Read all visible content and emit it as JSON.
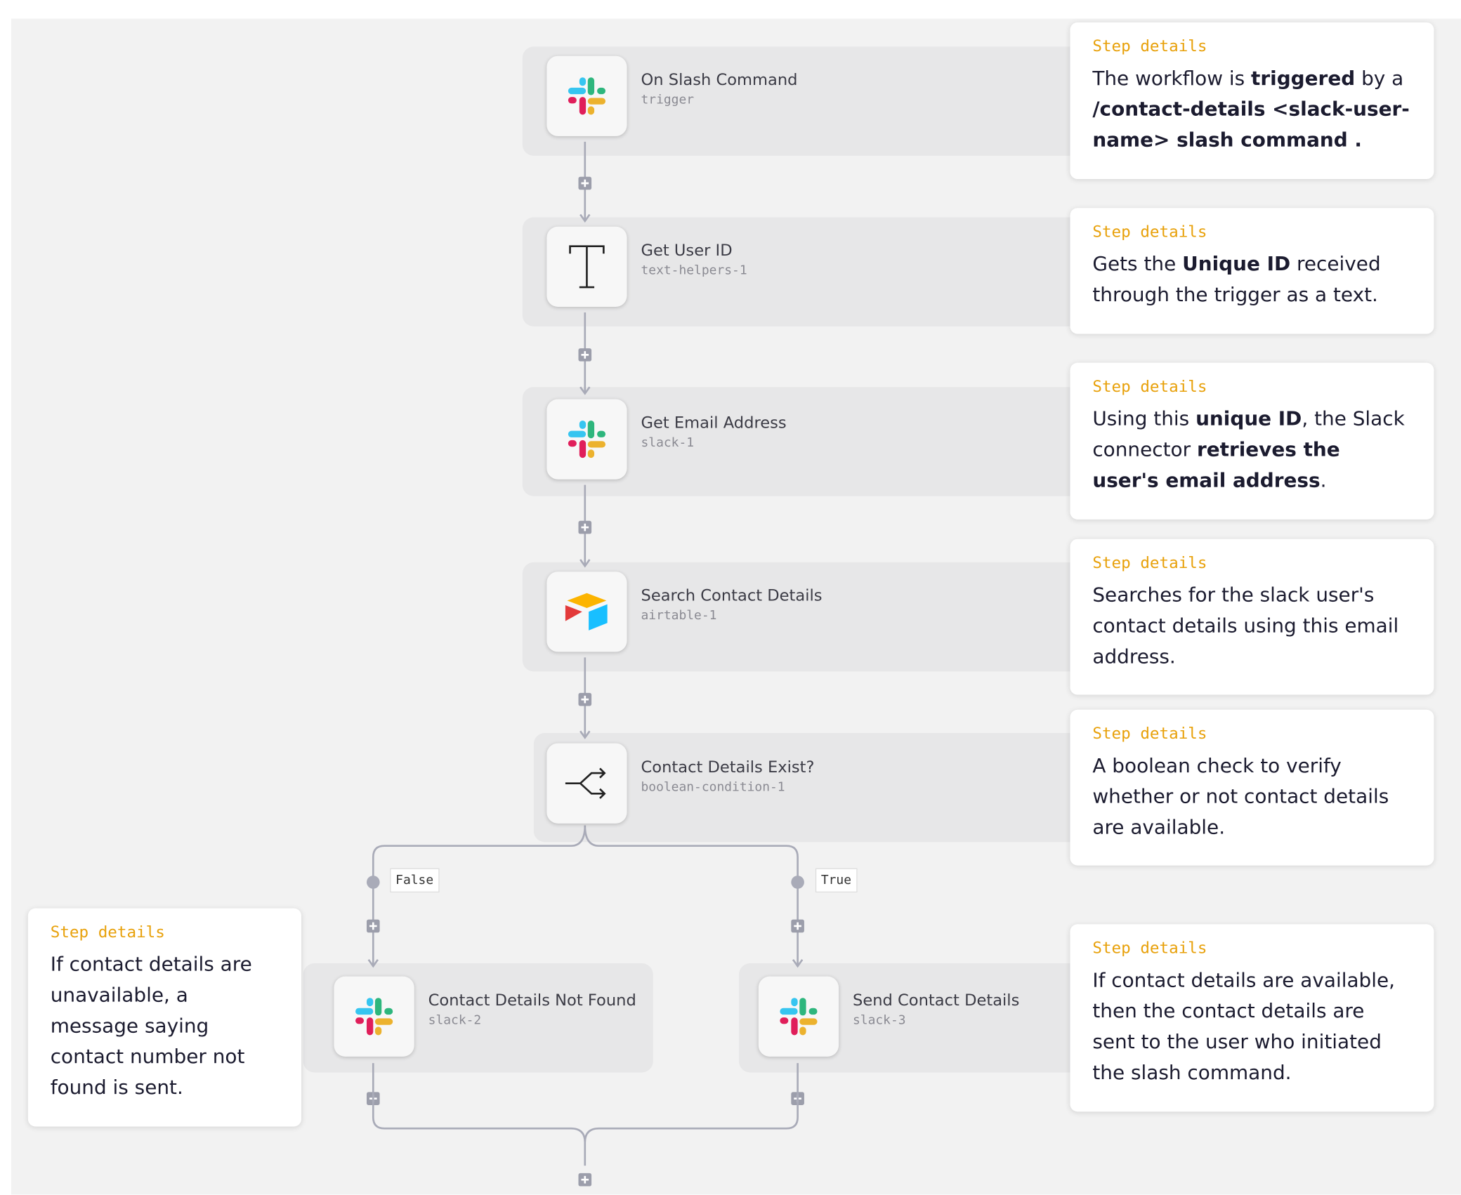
{
  "nodes": [
    {
      "title": "On Slash Command",
      "id": "trigger",
      "icon": "slack"
    },
    {
      "title": "Get User ID",
      "id": "text-helpers-1",
      "icon": "text"
    },
    {
      "title": "Get Email Address",
      "id": "slack-1",
      "icon": "slack"
    },
    {
      "title": "Search Contact Details",
      "id": "airtable-1",
      "icon": "airtable"
    },
    {
      "title": "Contact Details Exist?",
      "id": "boolean-condition-1",
      "icon": "boolean"
    },
    {
      "title": "Contact Details Not Found",
      "id": "slack-2",
      "icon": "slack"
    },
    {
      "title": "Send Contact Details",
      "id": "slack-3",
      "icon": "slack"
    }
  ],
  "branches": [
    "False",
    "True"
  ],
  "cards": [
    {
      "label": "Step details",
      "body": [
        {
          "text": "The workflow is "
        },
        {
          "text": "triggered",
          "bold": true
        },
        {
          "text": " by a "
        },
        {
          "text": "/contact-details <slack-user-name> slash command .",
          "bold": true
        }
      ]
    },
    {
      "label": "Step details",
      "body": [
        {
          "text": "Gets the "
        },
        {
          "text": "Unique ID",
          "bold": true
        },
        {
          "text": " received through the trigger as a text."
        }
      ]
    },
    {
      "label": "Step details",
      "body": [
        {
          "text": "Using this "
        },
        {
          "text": "unique ID",
          "bold": true
        },
        {
          "text": ", the Slack connector "
        },
        {
          "text": "retrieves the user's email address",
          "bold": true
        },
        {
          "text": "."
        }
      ]
    },
    {
      "label": "Step details",
      "body": [
        {
          "text": "Searches for the slack user's contact details using this email address."
        }
      ]
    },
    {
      "label": "Step details",
      "body": [
        {
          "text": "A boolean check to verify whether or not contact details are available."
        }
      ]
    },
    {
      "label": "Step details",
      "body": [
        {
          "text": "If contact details are available, then the contact details are sent to the user who initiated the slash command."
        }
      ]
    },
    {
      "label": "Step details",
      "body": [
        {
          "text": "If contact details are unavailable, a message saying contact number not found is sent."
        }
      ]
    }
  ]
}
